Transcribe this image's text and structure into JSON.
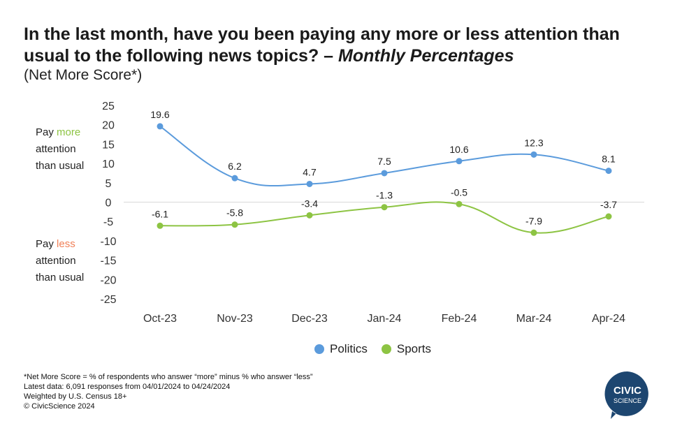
{
  "title": {
    "main": "In the last month, have you been paying any more or less attention than usual to the following news topics? – ",
    "emphasis": "Monthly Percentages"
  },
  "subtitle": "(Net More Score*)",
  "side_notes": {
    "more": {
      "line1_prefix": "Pay ",
      "line1_word": "more",
      "line2": "attention",
      "line3": "than usual"
    },
    "less": {
      "line1_prefix": "Pay ",
      "line1_word": "less",
      "line2": "attention",
      "line3": "than usual"
    }
  },
  "colors": {
    "politics": "#5b9bdc",
    "sports": "#8dc443",
    "more": "#8dc443",
    "less": "#f07f56",
    "logo": "#1d4670"
  },
  "chart_data": {
    "type": "line",
    "categories": [
      "Oct-23",
      "Nov-23",
      "Dec-23",
      "Jan-24",
      "Feb-24",
      "Mar-24",
      "Apr-24"
    ],
    "series": [
      {
        "name": "Politics",
        "values": [
          19.6,
          6.2,
          4.7,
          7.5,
          10.6,
          12.3,
          8.1
        ],
        "labels": [
          "19.6",
          "6.2",
          "4.7",
          "7.5",
          "10.6",
          "12.3",
          "8.1"
        ]
      },
      {
        "name": "Sports",
        "values": [
          -6.1,
          -5.8,
          -3.4,
          -1.3,
          -0.5,
          -7.9,
          -3.7
        ],
        "labels": [
          "-6.1",
          "-5.8",
          "-3.4",
          "-1.3",
          "-0.5",
          "-7.9",
          "-3.7"
        ]
      }
    ],
    "ylim": [
      -25,
      25
    ],
    "yticks": [
      25,
      20,
      15,
      10,
      5,
      0,
      -5,
      -10,
      -15,
      -20,
      -25
    ],
    "ytick_labels": [
      "25",
      "20",
      "15",
      "10",
      "5",
      "0",
      "-5",
      "-10",
      "-15",
      "-20",
      "-25"
    ],
    "legend": "bottom-center",
    "grid": false
  },
  "footnotes": [
    "*Net More Score = % of respondents who answer “more” minus % who answer “less”",
    "Latest data: 6,091 responses from 04/01/2024 to 04/24/2024",
    "Weighted by U.S. Census 18+",
    "© CivicScience 2024"
  ],
  "logo": {
    "line1": "CIVIC",
    "line2": "SCIENCE"
  }
}
